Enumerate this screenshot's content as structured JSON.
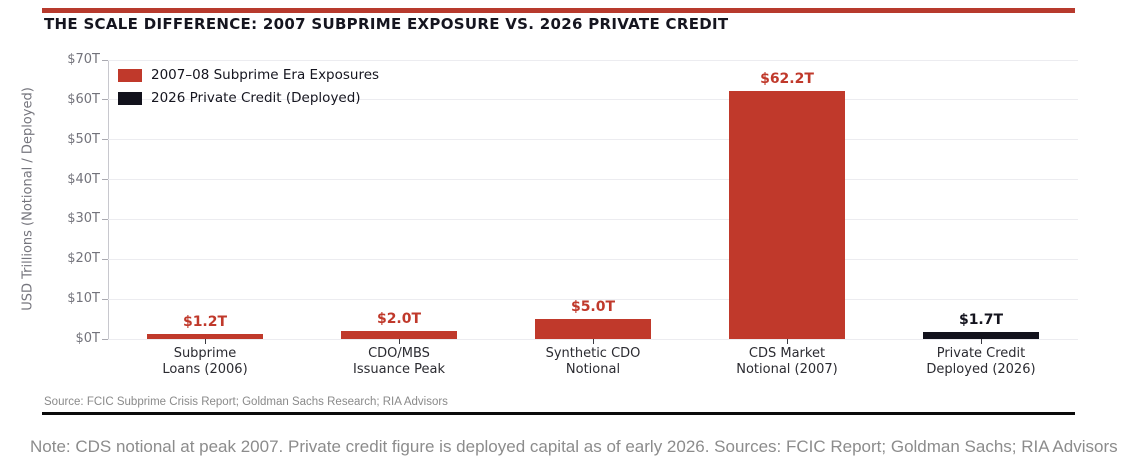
{
  "header": {
    "title": "THE SCALE DIFFERENCE: 2007 SUBPRIME EXPOSURE VS. 2026 PRIVATE CREDIT",
    "accent_bar_color": "#b73a2d"
  },
  "chart_data": {
    "type": "bar",
    "title": "THE SCALE DIFFERENCE: 2007 SUBPRIME EXPOSURE VS. 2026 PRIVATE CREDIT",
    "ylabel": "USD Trillions (Notional / Deployed)",
    "ylim": [
      0,
      70
    ],
    "ytick_step": 10,
    "ytick_labels": [
      "$0T",
      "$10T",
      "$20T",
      "$30T",
      "$40T",
      "$50T",
      "$60T",
      "$70T"
    ],
    "grid": true,
    "legend_position": "upper-left",
    "legend": [
      {
        "label": "2007–08 Subprime Era Exposures",
        "color": "#c0392b"
      },
      {
        "label": "2026 Private Credit (Deployed)",
        "color": "#12121c"
      }
    ],
    "categories": [
      [
        "Subprime",
        "Loans (2006)"
      ],
      [
        "CDO/MBS",
        "Issuance Peak"
      ],
      [
        "Synthetic CDO",
        "Notional"
      ],
      [
        "CDS Market",
        "Notional (2007)"
      ],
      [
        "Private Credit",
        "Deployed (2026)"
      ]
    ],
    "values": [
      1.2,
      2.0,
      5.0,
      62.2,
      1.7
    ],
    "value_labels": [
      "$1.2T",
      "$2.0T",
      "$5.0T",
      "$62.2T",
      "$1.7T"
    ],
    "bar_colors": [
      "#c0392b",
      "#c0392b",
      "#c0392b",
      "#c0392b",
      "#12121c"
    ],
    "value_label_colors": [
      "#c0392b",
      "#c0392b",
      "#c0392b",
      "#c0392b",
      "#15151f"
    ]
  },
  "footer": {
    "source": "Source: FCIC Subprime Crisis Report; Goldman Sachs Research; RIA Advisors",
    "note": "Note: CDS notional at peak 2007. Private credit figure is deployed capital as of early 2026. Sources: FCIC Report; Goldman Sachs; RIA Advisors"
  }
}
